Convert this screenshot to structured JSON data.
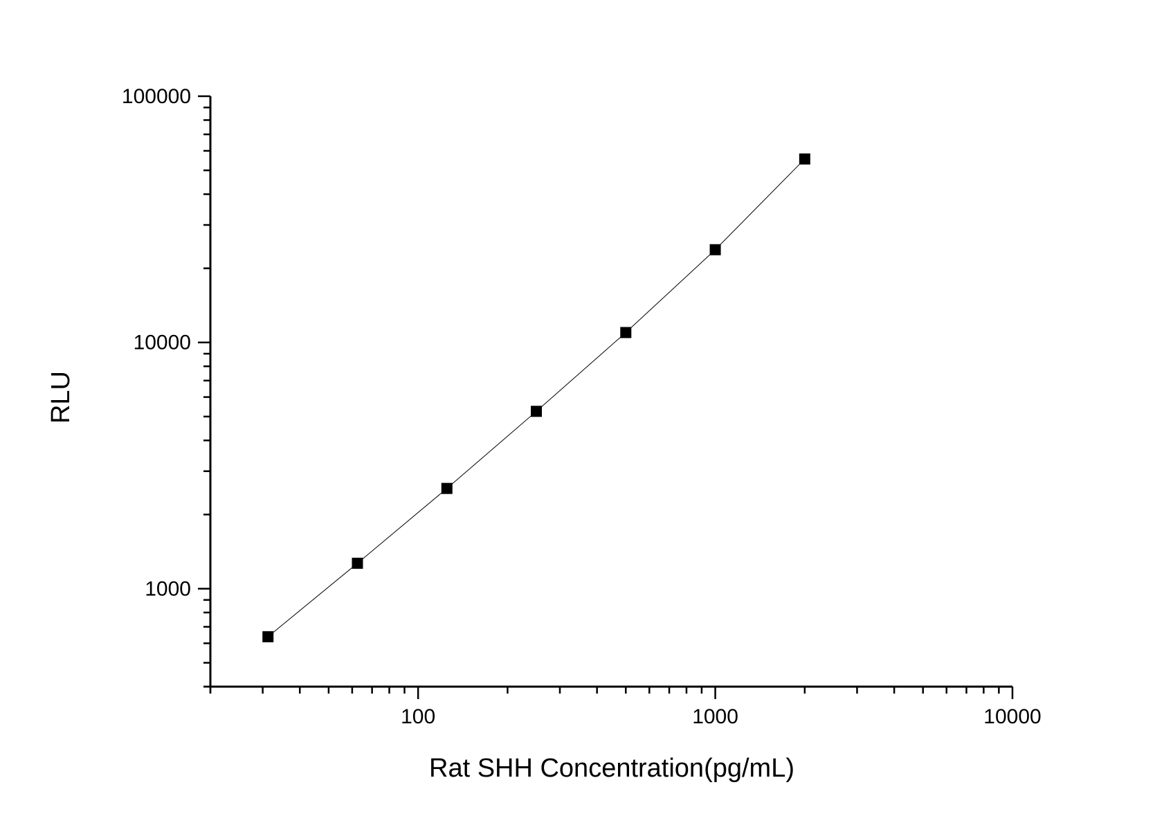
{
  "chart_data": {
    "type": "scatter",
    "title": "",
    "xlabel": "Rat SHH Concentration(pg/mL)",
    "ylabel": "RLU",
    "xscale": "log",
    "yscale": "log",
    "xlim": [
      20,
      10000
    ],
    "ylim": [
      400,
      100000
    ],
    "xticks": [
      100,
      1000,
      10000
    ],
    "xtick_labels": [
      "100",
      "1000",
      "10000"
    ],
    "yticks": [
      1000,
      10000,
      100000
    ],
    "ytick_labels": [
      "1000",
      "10000",
      "100000"
    ],
    "grid": false,
    "legend": "none",
    "marker": "square",
    "connect_points": true,
    "colors": {
      "marker": "#000000",
      "line": "#000000",
      "axis": "#000000"
    },
    "series": [
      {
        "x": [
          31.25,
          62.5,
          125,
          250,
          500,
          1000,
          2000
        ],
        "y": [
          638,
          1268,
          2553,
          5250,
          10970,
          23800,
          55600
        ]
      }
    ]
  }
}
